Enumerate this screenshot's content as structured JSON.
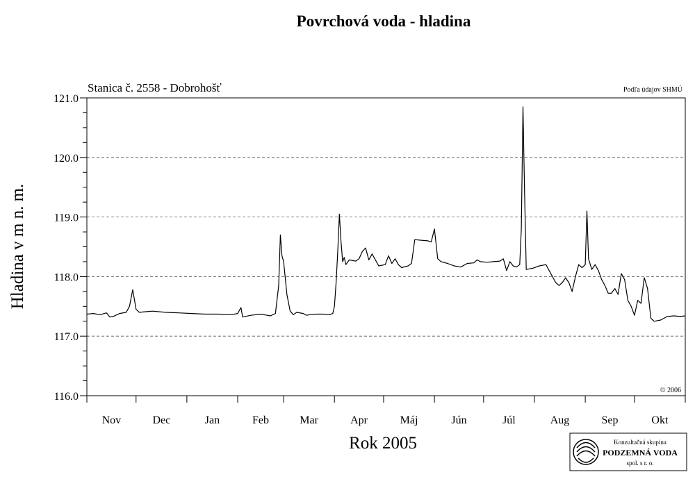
{
  "chart_data": {
    "type": "line",
    "title": "Povrchová voda - hladina",
    "subtitle": "Stanica č. 2558 - Dobrohošť",
    "source_note": "Podľa údajov SHMÚ",
    "copyright": "© 2006",
    "xlabel": "Rok 2005",
    "ylabel": "Hladina v m n. m.",
    "ylim": [
      116.0,
      121.0
    ],
    "yticks": [
      "116.0",
      "117.0",
      "118.0",
      "119.0",
      "120.0",
      "121.0"
    ],
    "grid": "horizontal-dashed",
    "x_tick_labels": [
      "Nov",
      "Dec",
      "Jan",
      "Feb",
      "Mar",
      "Apr",
      "Máj",
      "Jún",
      "Júl",
      "Aug",
      "Sep",
      "Okt"
    ],
    "series": [
      {
        "values": [
          [
            0,
            117.37
          ],
          [
            4,
            117.38
          ],
          [
            8,
            117.36
          ],
          [
            12,
            117.39
          ],
          [
            14,
            117.32
          ],
          [
            16,
            117.33
          ],
          [
            20,
            117.38
          ],
          [
            24,
            117.4
          ],
          [
            26,
            117.5
          ],
          [
            28,
            117.78
          ],
          [
            30,
            117.45
          ],
          [
            32,
            117.4
          ],
          [
            36,
            117.41
          ],
          [
            40,
            117.42
          ],
          [
            48,
            117.4
          ],
          [
            56,
            117.39
          ],
          [
            64,
            117.38
          ],
          [
            72,
            117.37
          ],
          [
            80,
            117.37
          ],
          [
            88,
            117.36
          ],
          [
            92,
            117.38
          ],
          [
            94,
            117.48
          ],
          [
            95,
            117.32
          ],
          [
            100,
            117.35
          ],
          [
            106,
            117.37
          ],
          [
            112,
            117.34
          ],
          [
            115,
            117.38
          ],
          [
            117,
            117.85
          ],
          [
            118,
            118.7
          ],
          [
            119,
            118.35
          ],
          [
            120,
            118.25
          ],
          [
            122,
            117.7
          ],
          [
            124,
            117.42
          ],
          [
            126,
            117.36
          ],
          [
            128,
            117.4
          ],
          [
            132,
            117.38
          ],
          [
            134,
            117.35
          ],
          [
            136,
            117.36
          ],
          [
            140,
            117.37
          ],
          [
            144,
            117.37
          ],
          [
            148,
            117.36
          ],
          [
            150,
            117.38
          ],
          [
            151,
            117.5
          ],
          [
            152,
            117.9
          ],
          [
            153,
            118.4
          ],
          [
            154,
            119.05
          ],
          [
            155,
            118.6
          ],
          [
            156,
            118.25
          ],
          [
            157,
            118.32
          ],
          [
            158,
            118.2
          ],
          [
            160,
            118.28
          ],
          [
            164,
            118.26
          ],
          [
            166,
            118.3
          ],
          [
            168,
            118.42
          ],
          [
            170,
            118.48
          ],
          [
            172,
            118.28
          ],
          [
            174,
            118.38
          ],
          [
            176,
            118.28
          ],
          [
            178,
            118.18
          ],
          [
            182,
            118.2
          ],
          [
            184,
            118.35
          ],
          [
            186,
            118.22
          ],
          [
            188,
            118.3
          ],
          [
            190,
            118.2
          ],
          [
            192,
            118.15
          ],
          [
            196,
            118.18
          ],
          [
            198,
            118.22
          ],
          [
            200,
            118.62
          ],
          [
            204,
            118.61
          ],
          [
            208,
            118.6
          ],
          [
            210,
            118.58
          ],
          [
            212,
            118.8
          ],
          [
            214,
            118.3
          ],
          [
            216,
            118.25
          ],
          [
            220,
            118.22
          ],
          [
            224,
            118.18
          ],
          [
            228,
            118.16
          ],
          [
            232,
            118.22
          ],
          [
            236,
            118.23
          ],
          [
            238,
            118.28
          ],
          [
            240,
            118.25
          ],
          [
            244,
            118.24
          ],
          [
            248,
            118.25
          ],
          [
            252,
            118.26
          ],
          [
            254,
            118.3
          ],
          [
            256,
            118.1
          ],
          [
            258,
            118.25
          ],
          [
            260,
            118.18
          ],
          [
            262,
            118.16
          ],
          [
            264,
            118.2
          ],
          [
            265,
            118.8
          ],
          [
            266,
            120.85
          ],
          [
            267,
            119.4
          ],
          [
            268,
            118.12
          ],
          [
            272,
            118.14
          ],
          [
            276,
            118.18
          ],
          [
            280,
            118.2
          ],
          [
            282,
            118.1
          ],
          [
            284,
            118.0
          ],
          [
            286,
            117.9
          ],
          [
            288,
            117.85
          ],
          [
            290,
            117.9
          ],
          [
            292,
            117.98
          ],
          [
            294,
            117.9
          ],
          [
            296,
            117.75
          ],
          [
            298,
            118.0
          ],
          [
            300,
            118.2
          ],
          [
            302,
            118.15
          ],
          [
            304,
            118.2
          ],
          [
            305,
            119.1
          ],
          [
            306,
            118.3
          ],
          [
            308,
            118.12
          ],
          [
            310,
            118.2
          ],
          [
            312,
            118.1
          ],
          [
            314,
            117.95
          ],
          [
            316,
            117.85
          ],
          [
            318,
            117.72
          ],
          [
            320,
            117.72
          ],
          [
            322,
            117.8
          ],
          [
            324,
            117.7
          ],
          [
            326,
            118.05
          ],
          [
            328,
            117.95
          ],
          [
            330,
            117.6
          ],
          [
            332,
            117.5
          ],
          [
            334,
            117.35
          ],
          [
            336,
            117.6
          ],
          [
            338,
            117.55
          ],
          [
            340,
            117.98
          ],
          [
            342,
            117.8
          ],
          [
            344,
            117.3
          ],
          [
            346,
            117.25
          ],
          [
            350,
            117.27
          ],
          [
            354,
            117.33
          ],
          [
            358,
            117.34
          ],
          [
            362,
            117.33
          ],
          [
            365,
            117.34
          ]
        ]
      }
    ]
  },
  "logo": {
    "line1": "Konzultačná skupina",
    "line2": "PODZEMNÁ VODA",
    "line3": "spol. s r. o."
  }
}
